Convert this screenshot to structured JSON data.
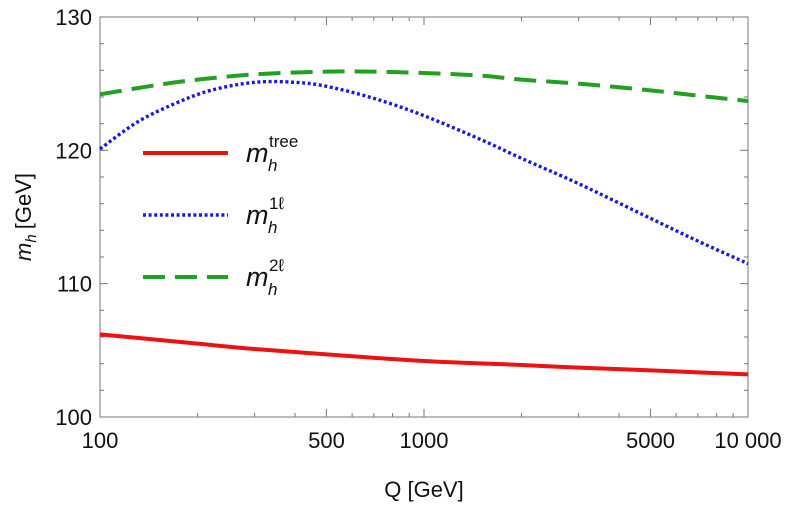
{
  "chart_data": {
    "type": "line",
    "xlabel": "Q [GeV]",
    "ylabel_main": "m",
    "ylabel_sub": "h",
    "ylabel_unit": "[GeV]",
    "xscale": "log",
    "xlim": [
      100,
      10000
    ],
    "ylim": [
      100,
      130
    ],
    "xticks": [
      100,
      500,
      1000,
      5000,
      10000
    ],
    "xtick_labels": [
      "100",
      "500",
      "1000",
      "5000",
      "10 000"
    ],
    "yticks": [
      100,
      110,
      120,
      130
    ],
    "ytick_labels": [
      "100",
      "110",
      "120",
      "130"
    ],
    "grid": false,
    "legend_position": "left",
    "series": [
      {
        "key": "tree",
        "legend_main": "m",
        "legend_sub": "h",
        "legend_sup": "tree",
        "color": "#ee1111",
        "style": "solid",
        "x": [
          100,
          200,
          300,
          500,
          1000,
          2000,
          3000,
          5000,
          7000,
          10000
        ],
        "y": [
          106.2,
          105.5,
          105.1,
          104.7,
          104.2,
          103.9,
          103.7,
          103.5,
          103.35,
          103.2
        ]
      },
      {
        "key": "one-loop",
        "legend_main": "m",
        "legend_sub": "h",
        "legend_sup": "1ℓ",
        "color": "#1a1adf",
        "style": "dotted",
        "x": [
          100,
          130,
          170,
          220,
          300,
          400,
          500,
          700,
          1000,
          1500,
          2000,
          3000,
          5000,
          7000,
          10000
        ],
        "y": [
          120.1,
          122.1,
          123.5,
          124.5,
          125.1,
          125.1,
          124.8,
          123.9,
          122.6,
          120.8,
          119.4,
          117.5,
          114.9,
          113.2,
          111.5
        ]
      },
      {
        "key": "two-loop",
        "legend_main": "m",
        "legend_sub": "h",
        "legend_sup": "2ℓ",
        "color": "#22a022",
        "style": "dashed",
        "x": [
          100,
          150,
          200,
          300,
          500,
          700,
          1000,
          1500,
          2000,
          3000,
          5000,
          7000,
          10000
        ],
        "y": [
          124.2,
          124.9,
          125.3,
          125.7,
          125.9,
          125.9,
          125.8,
          125.6,
          125.3,
          125.0,
          124.5,
          124.1,
          123.7
        ]
      }
    ]
  }
}
